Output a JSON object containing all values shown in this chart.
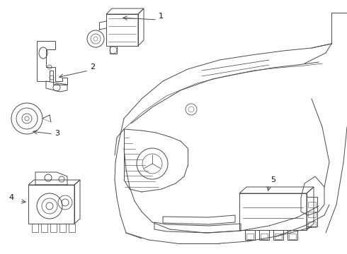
{
  "bg_color": "#ffffff",
  "line_color": "#4a4a4a",
  "label_color": "#111111",
  "fig_width": 4.9,
  "fig_height": 3.6,
  "dpi": 100,
  "lw": 0.7
}
